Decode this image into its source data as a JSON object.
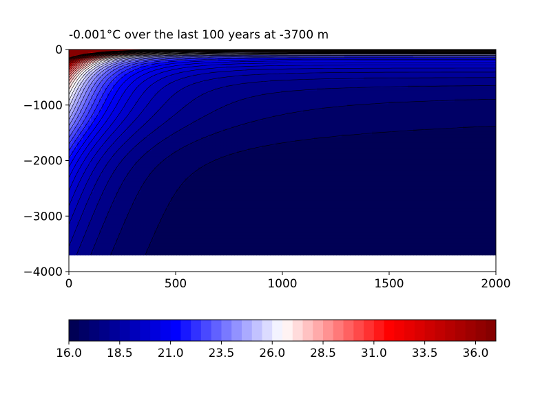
{
  "chart_data": [
    {
      "type": "heatmap",
      "title": "-0.001°C over the last 100 years at -3700 m",
      "xlabel": "",
      "ylabel": "",
      "xlim": [
        0,
        2000
      ],
      "ylim": [
        -4000,
        0
      ],
      "x_ticks": [
        0,
        500,
        1000,
        1500,
        2000
      ],
      "x_tick_labels": [
        "0",
        "500",
        "1000",
        "1500",
        "2000"
      ],
      "y_ticks": [
        0,
        -1000,
        -2000,
        -3000,
        -4000
      ],
      "y_tick_labels": [
        "0",
        "−1000",
        "−2000",
        "−3000",
        "−4000"
      ],
      "data_depth_bottom": -3700,
      "colormap": "seismic",
      "contour_line_color": "#000000",
      "notes_visible": "filled temperature contours; coldest (~16.0) fills the deep interior beyond ~500 in x and below ~-1800 in depth; warmer isotherms crowd near x=0 and the surface",
      "grid": false
    },
    {
      "type": "colorbar",
      "orientation": "horizontal",
      "vmin": 16.0,
      "vmax": 37.0,
      "levels": 42,
      "tick_values": [
        16.0,
        18.5,
        21.0,
        23.5,
        26.0,
        28.5,
        31.0,
        33.5,
        36.0
      ],
      "tick_labels": [
        "16.0",
        "18.5",
        "21.0",
        "23.5",
        "26.0",
        "28.5",
        "31.0",
        "33.5",
        "36.0"
      ],
      "colors": {
        "low": "#00007f",
        "mid": "#ffffff",
        "high": "#7f0000"
      }
    }
  ]
}
